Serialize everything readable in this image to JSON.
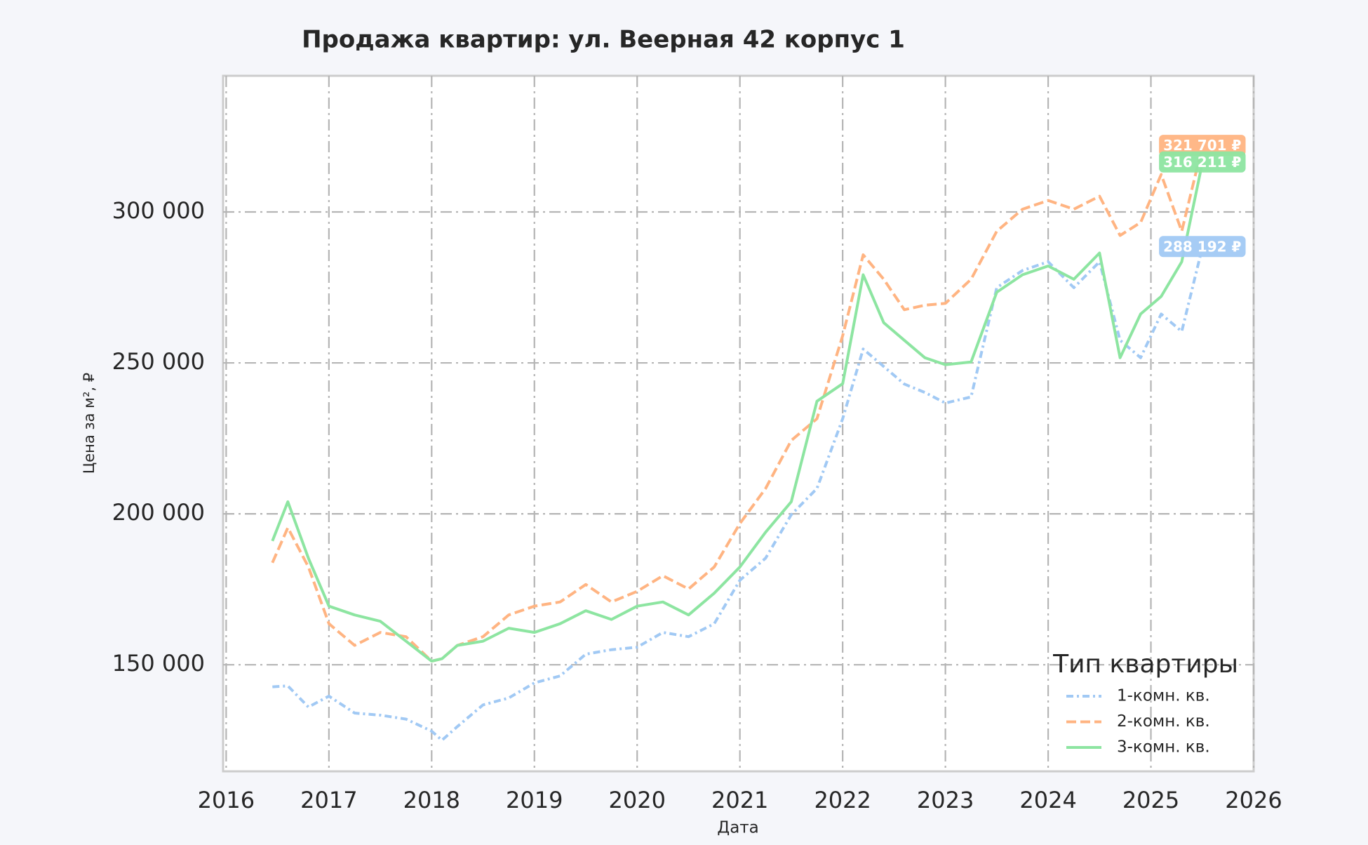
{
  "chart_data": {
    "type": "line",
    "title": "Продажа квартир: ул. Веерная 42 корпус 1",
    "x_label": "Дата",
    "y_label": "Цена за м², ₽",
    "x": [
      2016.45,
      2016.6,
      2016.8,
      2017.0,
      2017.25,
      2017.5,
      2017.75,
      2018.0,
      2018.1,
      2018.25,
      2018.5,
      2018.75,
      2019.0,
      2019.25,
      2019.5,
      2019.75,
      2020.0,
      2020.25,
      2020.5,
      2020.75,
      2021.0,
      2021.25,
      2021.5,
      2021.75,
      2022.0,
      2022.2,
      2022.4,
      2022.6,
      2022.8,
      2023.0,
      2023.25,
      2023.5,
      2023.75,
      2024.0,
      2024.25,
      2024.5,
      2024.7,
      2024.9,
      2025.1,
      2025.3,
      2025.5
    ],
    "series": [
      {
        "name": "1-комн. кв.",
        "color": "#a1c9f4",
        "linestyle": "dashdot",
        "values": [
          142700,
          143000,
          136000,
          139600,
          134000,
          133300,
          132000,
          128000,
          125000,
          129500,
          136700,
          139000,
          144000,
          146300,
          153500,
          155000,
          155800,
          160700,
          159300,
          163600,
          178000,
          185300,
          199700,
          208400,
          231500,
          254600,
          248800,
          243000,
          240200,
          236700,
          238700,
          274900,
          280600,
          283500,
          274900,
          283500,
          257500,
          251700,
          266200,
          260400,
          288192
        ],
        "value_labels": [
          null,
          null,
          null,
          null,
          null,
          null,
          null,
          null,
          null,
          null,
          null,
          null,
          null,
          null,
          null,
          null,
          null,
          null,
          null,
          null,
          null,
          null,
          null,
          null,
          null,
          null,
          null,
          null,
          null,
          null,
          null,
          null,
          null,
          null,
          null,
          null,
          null,
          null,
          null,
          null,
          "288 192 ₽"
        ]
      },
      {
        "name": "2-комн. кв.",
        "color": "#ffb482",
        "linestyle": "dashed",
        "values": [
          183800,
          195400,
          182400,
          163600,
          156400,
          160700,
          159300,
          151200,
          152000,
          156400,
          159300,
          166500,
          169400,
          170800,
          176600,
          170800,
          174300,
          179500,
          175100,
          182400,
          196800,
          208400,
          224300,
          231500,
          259000,
          285800,
          277700,
          267600,
          269100,
          269700,
          277700,
          293600,
          300900,
          303800,
          300900,
          305200,
          292200,
          296500,
          312400,
          293600,
          321701
        ],
        "value_labels": [
          null,
          null,
          null,
          null,
          null,
          null,
          null,
          null,
          null,
          null,
          null,
          null,
          null,
          null,
          null,
          null,
          null,
          null,
          null,
          null,
          null,
          null,
          null,
          null,
          null,
          null,
          null,
          null,
          null,
          null,
          null,
          null,
          null,
          null,
          null,
          null,
          null,
          null,
          null,
          null,
          "321 701 ₽"
        ]
      },
      {
        "name": "3-комн. кв.",
        "color": "#8de5a1",
        "linestyle": "solid",
        "values": [
          191000,
          204000,
          185300,
          169400,
          166500,
          164400,
          157800,
          151200,
          152000,
          156400,
          157800,
          162100,
          160700,
          163600,
          167900,
          165000,
          169400,
          170800,
          166500,
          173700,
          182400,
          193900,
          204000,
          237300,
          243100,
          279200,
          263300,
          257500,
          251700,
          249400,
          250300,
          273400,
          279200,
          282100,
          277700,
          286400,
          251700,
          266200,
          272000,
          283500,
          316211
        ],
        "value_labels": [
          null,
          null,
          null,
          null,
          null,
          null,
          null,
          null,
          null,
          null,
          null,
          null,
          null,
          null,
          null,
          null,
          null,
          null,
          null,
          null,
          null,
          null,
          null,
          null,
          null,
          null,
          null,
          null,
          null,
          null,
          null,
          null,
          null,
          null,
          null,
          null,
          null,
          null,
          null,
          null,
          "316 211 ₽"
        ]
      }
    ],
    "xlim": [
      2015.97,
      2026
    ],
    "xticks": [
      2016,
      2017,
      2018,
      2019,
      2020,
      2021,
      2022,
      2023,
      2024,
      2025,
      2026
    ],
    "ylim": [
      114700,
      345100
    ],
    "yticks": [
      {
        "value": 150000,
        "label": "150 000"
      },
      {
        "value": 200000,
        "label": "200 000"
      },
      {
        "value": 250000,
        "label": "250 000"
      },
      {
        "value": 300000,
        "label": "300 000"
      }
    ],
    "grid": true,
    "legend_title": "Тип квартиры",
    "legend_position": "lower right"
  }
}
